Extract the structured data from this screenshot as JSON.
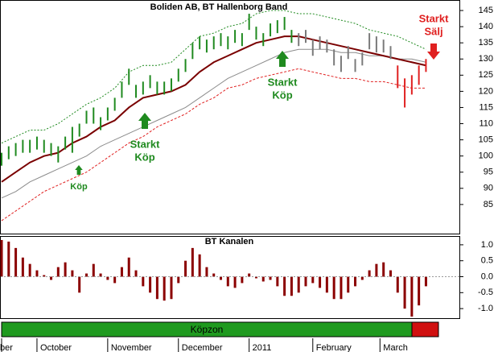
{
  "chart_data": [
    {
      "type": "range-bar",
      "title": "Boliden AB, BT Hallenborg Band",
      "xlim": [
        0,
        129
      ],
      "ylim": [
        76,
        148
      ],
      "yticks": [
        85,
        90,
        95,
        100,
        105,
        110,
        115,
        120,
        125,
        130,
        135,
        140,
        145
      ],
      "bars": [
        {
          "color": "#1f8a1f",
          "x": [
            0,
            2,
            4,
            6,
            8,
            10,
            12,
            14,
            16,
            18,
            20,
            22,
            24,
            26,
            28,
            30,
            32,
            34,
            36,
            38,
            40,
            42,
            44,
            46,
            48,
            50,
            52,
            54,
            56,
            58,
            60,
            62,
            64,
            66,
            68,
            70,
            72,
            74,
            76,
            78,
            80,
            82
          ],
          "low": [
            97,
            99,
            100,
            101,
            101,
            102,
            101,
            100,
            98,
            102,
            101,
            106,
            110,
            110,
            108,
            111,
            114,
            118,
            122,
            118,
            119,
            121,
            119,
            119,
            120,
            123,
            126,
            130,
            133,
            132,
            133,
            134,
            133,
            135,
            134,
            139,
            136,
            134,
            137,
            138,
            139,
            135
          ],
          "high": [
            101,
            103,
            104,
            105,
            105,
            106,
            105,
            104,
            103,
            106,
            109,
            110,
            114,
            115,
            112,
            115,
            118,
            123,
            127,
            122,
            123,
            125,
            123,
            123,
            124,
            127,
            130,
            135,
            137,
            136,
            137,
            138,
            137,
            139,
            138,
            144,
            140,
            138,
            141,
            142,
            143,
            139
          ]
        },
        {
          "color": "#7a7a7a",
          "x": [
            84,
            86,
            88,
            90,
            92,
            94,
            96,
            98,
            100,
            102,
            104,
            106,
            108,
            110
          ],
          "low": [
            134,
            135,
            131,
            133,
            132,
            128,
            126,
            130,
            126,
            128,
            133,
            132,
            132,
            130
          ],
          "high": [
            138,
            139,
            136,
            137,
            136,
            133,
            131,
            134,
            130,
            132,
            138,
            137,
            136,
            134
          ]
        },
        {
          "color": "#e02020",
          "x": [
            112,
            114,
            116,
            118,
            120
          ],
          "low": [
            121,
            115,
            119,
            122,
            126
          ],
          "high": [
            128,
            124,
            125,
            128,
            130
          ]
        }
      ],
      "line_x": [
        0,
        4,
        8,
        12,
        16,
        20,
        24,
        28,
        32,
        36,
        40,
        44,
        48,
        52,
        56,
        60,
        64,
        68,
        72,
        76,
        80,
        84,
        88,
        92,
        96,
        100,
        104,
        108,
        112,
        116,
        120
      ],
      "lines": [
        {
          "color": "#1f8a1f",
          "dash": "2,2",
          "values": [
            104,
            106,
            108,
            108,
            110,
            113,
            116,
            118,
            121,
            126,
            128,
            128,
            129,
            133,
            137,
            138,
            140,
            141,
            144,
            145,
            145,
            144,
            144,
            143,
            142,
            141,
            139,
            138,
            137,
            135,
            133
          ]
        },
        {
          "color": "#e02020",
          "dash": "3,2",
          "values": [
            80,
            83,
            86,
            89,
            91,
            93,
            95,
            98,
            101,
            104,
            106,
            109,
            111,
            113,
            116,
            118,
            121,
            122,
            124,
            125,
            126,
            127,
            126,
            125,
            124,
            124,
            123,
            123,
            122,
            121,
            121
          ]
        },
        {
          "color": "#8b8b8b",
          "values": [
            87,
            89,
            92,
            94,
            96,
            98,
            100,
            103,
            105,
            107,
            109,
            111,
            113,
            115,
            118,
            121,
            124,
            126,
            128,
            130,
            132,
            133,
            133,
            133,
            132,
            132,
            131,
            131,
            130,
            130,
            129
          ]
        },
        {
          "color": "#7a0000",
          "width": 2,
          "values": [
            92,
            95,
            98,
            100,
            101,
            104,
            106,
            109,
            111,
            115,
            118,
            119,
            120,
            122,
            126,
            129,
            131,
            133,
            135,
            136,
            137,
            137,
            136,
            135,
            134,
            133,
            132,
            131,
            130,
            129,
            128
          ]
        }
      ],
      "annotations": [
        [
          "Köp"
        ],
        [
          "Starkt",
          "Köp"
        ],
        [
          "Starkt",
          "Köp"
        ],
        [
          "Starkt",
          "Sälj"
        ]
      ]
    },
    {
      "type": "bar",
      "title": "BT Kanalen",
      "color": "#8b0000",
      "xlim": [
        0,
        129
      ],
      "ylim": [
        -1.3,
        1.25
      ],
      "yticks": [
        {
          "value": 1,
          "label": "1.0"
        },
        {
          "value": 0.5,
          "label": "0.5"
        },
        {
          "value": 0,
          "label": "0.0"
        },
        {
          "value": -0.5,
          "label": "-0.5"
        },
        {
          "value": -1,
          "label": "-1.0"
        }
      ],
      "x": [
        0,
        2,
        4,
        6,
        8,
        10,
        12,
        14,
        16,
        18,
        20,
        22,
        24,
        26,
        28,
        30,
        32,
        34,
        36,
        38,
        40,
        42,
        44,
        46,
        48,
        50,
        52,
        54,
        56,
        58,
        60,
        62,
        64,
        66,
        68,
        70,
        72,
        74,
        76,
        78,
        80,
        82,
        84,
        86,
        88,
        90,
        92,
        94,
        96,
        98,
        100,
        102,
        104,
        106,
        108,
        110,
        112,
        114,
        116,
        118,
        120
      ],
      "values": [
        1.15,
        1.1,
        0.9,
        0.6,
        0.4,
        0.2,
        0.05,
        -0.1,
        0.3,
        0.45,
        0.2,
        -0.5,
        0.1,
        0.4,
        0.1,
        -0.1,
        -0.2,
        0.3,
        0.6,
        0.2,
        -0.3,
        -0.5,
        -0.7,
        -0.75,
        -0.7,
        -0.2,
        0.5,
        0.9,
        0.7,
        0.3,
        0.1,
        -0.1,
        -0.3,
        -0.35,
        -0.2,
        0.1,
        -0.05,
        -0.15,
        -0.1,
        -0.3,
        -0.6,
        -0.6,
        -0.5,
        -0.3,
        -0.2,
        -0.35,
        -0.5,
        -0.7,
        -0.7,
        -0.5,
        -0.3,
        -0.1,
        0.2,
        0.4,
        0.45,
        0.2,
        -0.5,
        -1.0,
        -1.25,
        -0.9,
        -0.3
      ],
      "zone": "Köpzon",
      "xticks": [
        {
          "value": 0,
          "label": "ber"
        },
        {
          "value": 10,
          "label": "October"
        },
        {
          "value": 30,
          "label": "November"
        },
        {
          "value": 50,
          "label": "December"
        },
        {
          "value": 70,
          "label": "2011"
        },
        {
          "value": 88,
          "label": "February"
        },
        {
          "value": 107,
          "label": "March"
        }
      ]
    }
  ]
}
